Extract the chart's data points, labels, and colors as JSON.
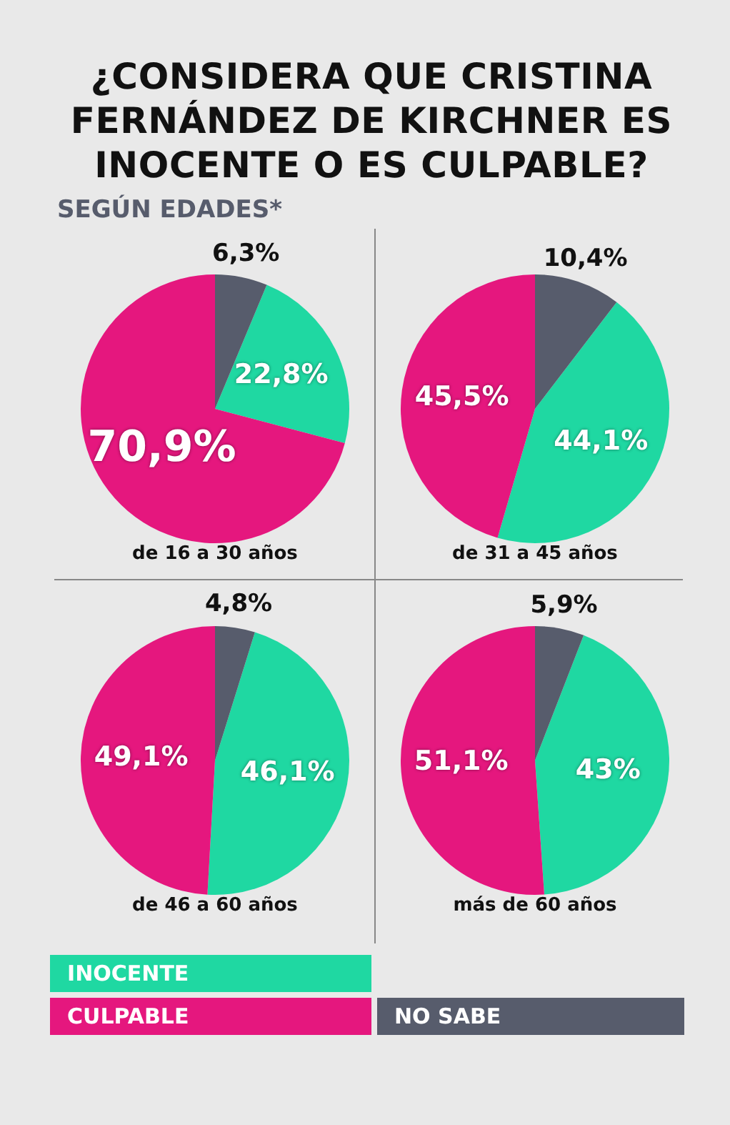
{
  "chart_data": [
    {
      "type": "other",
      "title": "¿CONSIDERA QUE CRISTINA FERNÁNDEZ DE KIRCHNER ES INOCENTE O ES CULPABLE?",
      "subtitle": "SEGÚN EDADES*"
    },
    {
      "type": "pie",
      "xlabel": "de 16 a 30 años",
      "categories": [
        null,
        null,
        null
      ],
      "values": [
        22.8,
        70.9,
        6.3
      ],
      "colors": [
        "#1fd8a2",
        "#e5177e",
        "#575c6c"
      ],
      "value_labels": [
        "22,8%",
        "70,9%",
        "6,3%"
      ]
    },
    {
      "type": "pie",
      "xlabel": "de 31 a 45 años",
      "categories": [
        null,
        null,
        null
      ],
      "values": [
        44.1,
        45.5,
        10.4
      ],
      "colors": [
        "#1fd8a2",
        "#e5177e",
        "#575c6c"
      ],
      "value_labels": [
        "44,1%",
        "45,5%",
        "10,4%"
      ]
    },
    {
      "type": "pie",
      "xlabel": "de 46 a 60 años",
      "categories": [
        null,
        null,
        null
      ],
      "values": [
        46.1,
        49.1,
        4.8
      ],
      "colors": [
        "#1fd8a2",
        "#e5177e",
        "#575c6c"
      ],
      "value_labels": [
        "46,1%",
        "49,1%",
        "4,8%"
      ]
    },
    {
      "type": "pie",
      "xlabel": "más de 60 años",
      "categories": [
        "INOCENTE",
        "CULPABLE",
        "NO SABE"
      ],
      "values": [
        43,
        51.1,
        5.9
      ],
      "colors": [
        "#1fd8a2",
        "#e5177e",
        "#575c6c"
      ],
      "value_labels": [
        "43%",
        "51,1%",
        "5,9%"
      ],
      "legend": "bottom"
    }
  ]
}
